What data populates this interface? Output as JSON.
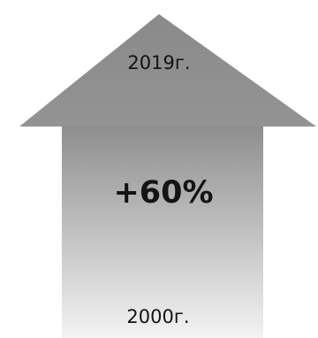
{
  "arrow": {
    "top_label": "2019г.",
    "center_label": "+60%",
    "bottom_label": "2000г.",
    "colors": {
      "fill_top": "#8d8d8d",
      "fill_bottom": "#f3f3f3",
      "text": "#141414"
    }
  }
}
